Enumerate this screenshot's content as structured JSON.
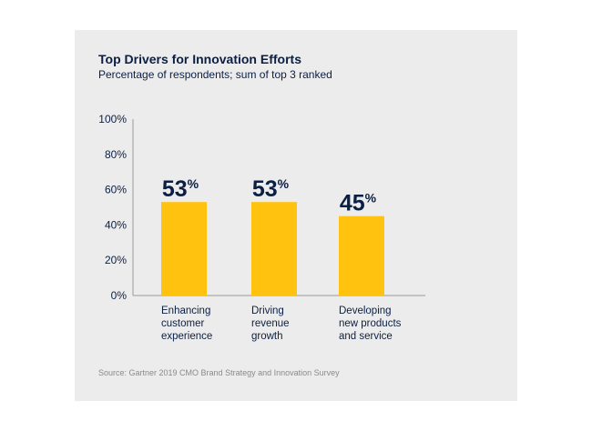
{
  "chart_data": {
    "type": "bar",
    "title": "Top Drivers for Innovation Efforts",
    "subtitle": "Percentage of respondents; sum of top 3 ranked",
    "categories": [
      [
        "Enhancing",
        "customer",
        "experience"
      ],
      [
        "Driving",
        "revenue",
        "growth"
      ],
      [
        "Developing",
        "new products",
        "and service"
      ]
    ],
    "values": [
      53,
      53,
      45
    ],
    "value_labels": [
      "53",
      "53",
      "45"
    ],
    "value_suffix": "%",
    "y_ticks": [
      "0%",
      "20%",
      "40%",
      "60%",
      "80%",
      "100%"
    ],
    "ylim": [
      0,
      100
    ],
    "grid": false,
    "source": "Source: Gartner 2019 CMO Brand Strategy and Innovation Survey",
    "colors": {
      "bar": "#FFC20E",
      "text": "#0B1F44",
      "axis": "#9A9A9A",
      "source": "#8A8A8A",
      "card": "#ECECEC"
    }
  }
}
